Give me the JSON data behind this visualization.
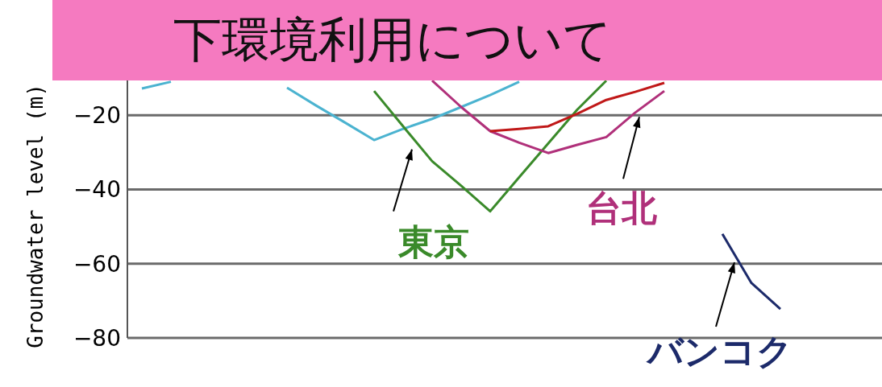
{
  "chart_data": {
    "type": "line",
    "title": "下環境利用について",
    "ylabel": "Groundwater level (m)",
    "categories": [
      null,
      null,
      null,
      null,
      null,
      null,
      null,
      null,
      null,
      null,
      null,
      null,
      null,
      null,
      null,
      null,
      null,
      null,
      null,
      null,
      null,
      null,
      null,
      null,
      null,
      null
    ],
    "series": [
      {
        "color": "#4bb3d0",
        "values": [
          -12.8,
          -11,
          null,
          null,
          null,
          -12.6,
          -17.4,
          -22,
          -26.7,
          -23.7,
          -21,
          -17.8,
          -14.6,
          -11,
          null,
          null,
          null,
          null,
          null,
          null,
          null,
          null,
          null,
          null,
          null,
          null
        ]
      },
      {
        "name": "東京",
        "color": "#3a8a2a",
        "values": [
          null,
          null,
          null,
          null,
          null,
          null,
          null,
          null,
          -13.5,
          -23,
          -32.4,
          -39,
          -45.9,
          -36.7,
          -27.6,
          -18.5,
          -10.7,
          null,
          null,
          null,
          null,
          null,
          null,
          null,
          null,
          null
        ]
      },
      {
        "name": "台北",
        "color": "#b0307a",
        "values": [
          null,
          null,
          null,
          null,
          null,
          null,
          null,
          null,
          null,
          null,
          -10.7,
          -17.8,
          -24.3,
          -27.4,
          -30.2,
          -28,
          -25.9,
          -19.3,
          -13.5,
          null,
          null,
          null,
          null,
          null,
          null,
          null
        ]
      },
      {
        "color": "#c01818",
        "values": [
          null,
          null,
          null,
          null,
          null,
          null,
          null,
          null,
          null,
          null,
          null,
          null,
          -24.3,
          -23.7,
          -23,
          -19.6,
          -15.9,
          -13.7,
          -11.3,
          null,
          null,
          null,
          null,
          null,
          null,
          null
        ]
      },
      {
        "name": "バンコク",
        "color": "#1c2a6a",
        "values": [
          null,
          null,
          null,
          null,
          null,
          null,
          null,
          null,
          null,
          null,
          null,
          null,
          null,
          null,
          null,
          null,
          null,
          null,
          null,
          null,
          -52,
          -65.2,
          -72.2,
          null,
          null,
          null
        ]
      }
    ],
    "ylim": [
      -80,
      -10
    ],
    "yticks": [
      -80,
      -60,
      -40,
      -20
    ],
    "grid": "y",
    "marker": "none",
    "line_style": "solid"
  }
}
